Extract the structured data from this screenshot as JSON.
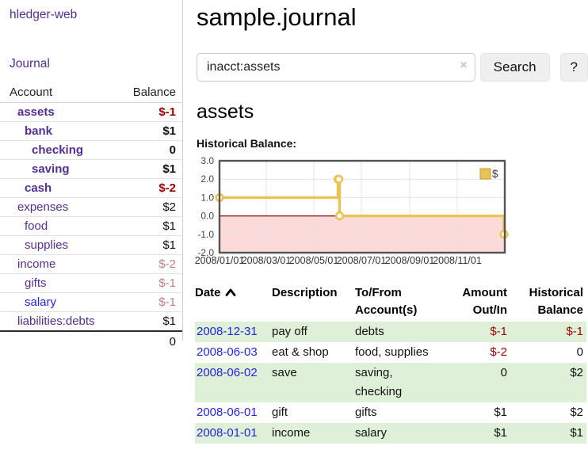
{
  "app_title": "hledger-web",
  "sidebar": {
    "journal_link": "Journal",
    "table": {
      "account_header": "Account",
      "balance_header": "Balance",
      "rows": [
        {
          "name": "assets",
          "balance": "$-1",
          "name_class": "acct bold d1",
          "bal_class": "neg-strong"
        },
        {
          "name": "bank",
          "balance": "$1",
          "name_class": "acct bold d2",
          "bal_class": "pos-bold"
        },
        {
          "name": "checking",
          "balance": "0",
          "name_class": "acct bold d3",
          "bal_class": "pos-bold"
        },
        {
          "name": "saving",
          "balance": "$1",
          "name_class": "acct bold d3",
          "bal_class": "pos-bold"
        },
        {
          "name": "cash",
          "balance": "$-2",
          "name_class": "acct bold d2",
          "bal_class": "neg-strong"
        },
        {
          "name": "expenses",
          "balance": "$2",
          "name_class": "acct d1",
          "bal_class": "pos"
        },
        {
          "name": "food",
          "balance": "$1",
          "name_class": "acct d2",
          "bal_class": "pos"
        },
        {
          "name": "supplies",
          "balance": "$1",
          "name_class": "acct d2",
          "bal_class": "pos"
        },
        {
          "name": "income",
          "balance": "$-2",
          "name_class": "acct d1",
          "bal_class": "neg-soft"
        },
        {
          "name": "gifts",
          "balance": "$-1",
          "name_class": "acct d2",
          "bal_class": "neg-soft"
        },
        {
          "name": "salary",
          "balance": "$-1",
          "name_class": "acct blue d2",
          "bal_class": "neg-soft"
        },
        {
          "name": "liabilities:debts",
          "balance": "$1",
          "name_class": "acct d1",
          "bal_class": "pos"
        }
      ],
      "total": "0"
    }
  },
  "main": {
    "title": "sample.journal",
    "search": {
      "value": "inacct:assets",
      "clear_icon": "×",
      "search_button": "Search",
      "help_button": "?"
    },
    "account_heading": "assets",
    "section_label": "Historical Balance:"
  },
  "chart_data": {
    "type": "line",
    "style": "steps",
    "title": "Historical Balance:",
    "series": [
      {
        "name": "$",
        "color": "#e9c353",
        "points": [
          {
            "x": "2008-01-01",
            "y": 1
          },
          {
            "x": "2008-06-01",
            "y": 2
          },
          {
            "x": "2008-06-02",
            "y": 2
          },
          {
            "x": "2008-06-03",
            "y": 0
          },
          {
            "x": "2008-12-31",
            "y": -1
          }
        ]
      }
    ],
    "xlim": [
      "2008-01-01",
      "2008-12-31"
    ],
    "ylim": [
      -2.0,
      3.0
    ],
    "yticks": [
      {
        "v": 3,
        "label": "3.0"
      },
      {
        "v": 2,
        "label": "2.0"
      },
      {
        "v": 1,
        "label": "1.0"
      },
      {
        "v": 0,
        "label": "0.0"
      },
      {
        "v": -1,
        "label": "-1.0"
      },
      {
        "v": -2,
        "label": "-2.0"
      }
    ],
    "xticks": [
      {
        "v": "2008-01-01",
        "label": "2008/01/01"
      },
      {
        "v": "2008-03-01",
        "label": "2008/03/01"
      },
      {
        "v": "2008-05-01",
        "label": "2008/05/01"
      },
      {
        "v": "2008-07-01",
        "label": "2008/07/01"
      },
      {
        "v": "2008-09-01",
        "label": "2008/09/01"
      },
      {
        "v": "2008-11-01",
        "label": "2008/11/01"
      }
    ],
    "legend": {
      "label": "$",
      "position": "top-right"
    },
    "grid": true,
    "negative_region": "#fcdada",
    "zero_line": "#8b0000"
  },
  "register": {
    "headers": {
      "date": "Date",
      "description": "Description",
      "account": "To/From Account(s)",
      "amount": "Amount Out/In",
      "balance": "Historical Balance"
    },
    "rows": [
      {
        "date": "2008-12-31",
        "description": "pay off",
        "account": "debts",
        "amount": "$-1",
        "balance": "$-1"
      },
      {
        "date": "2008-06-03",
        "description": "eat & shop",
        "account": "food, supplies",
        "amount": "$-2",
        "balance": "0"
      },
      {
        "date": "2008-06-02",
        "description": "save",
        "account": "saving, checking",
        "amount": "0",
        "balance": "$2"
      },
      {
        "date": "2008-06-01",
        "description": "gift",
        "account": "gifts",
        "amount": "$1",
        "balance": "$2"
      },
      {
        "date": "2008-01-01",
        "description": "income",
        "account": "salary",
        "amount": "$1",
        "balance": "$1"
      }
    ]
  },
  "colors": {
    "accent_purple": "#552e91",
    "link_blue": "#2424d6",
    "negative_red": "#9e0000",
    "soft_negative_red": "#c08080",
    "row_stripe_green": "#dff0d8",
    "chart_gold": "#e9c353",
    "chart_negative_region": "#fcdada",
    "chart_zero_line": "#8b0000"
  }
}
